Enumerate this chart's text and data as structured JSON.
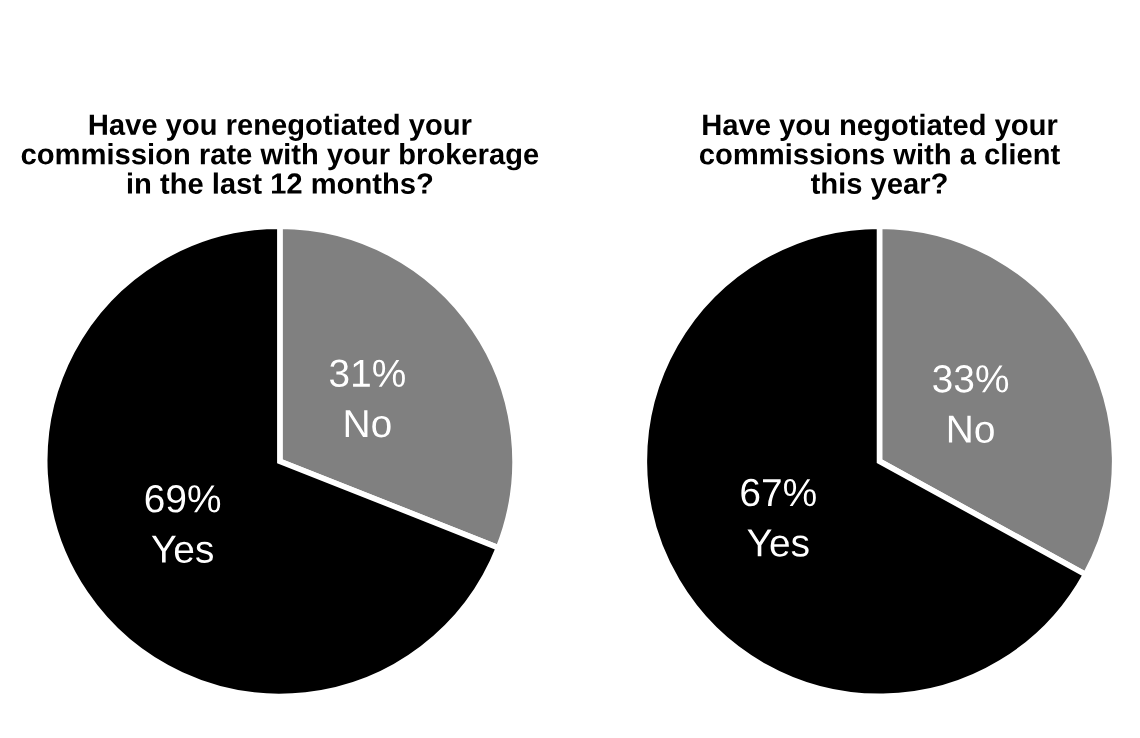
{
  "chart_data": [
    {
      "type": "pie",
      "title": "Have you renegotiated your\ncommission rate with your brokerage\nin the last 12 months?",
      "categories": [
        "No",
        "Yes"
      ],
      "values": [
        31,
        69
      ],
      "value_labels": [
        "31%",
        "69%"
      ],
      "colors": [
        "#808080",
        "#000000"
      ]
    },
    {
      "type": "pie",
      "title": "Have you negotiated your\ncommissions with a client\nthis year?",
      "categories": [
        "No",
        "Yes"
      ],
      "values": [
        33,
        67
      ],
      "value_labels": [
        "33%",
        "67%"
      ],
      "colors": [
        "#808080",
        "#000000"
      ]
    }
  ]
}
